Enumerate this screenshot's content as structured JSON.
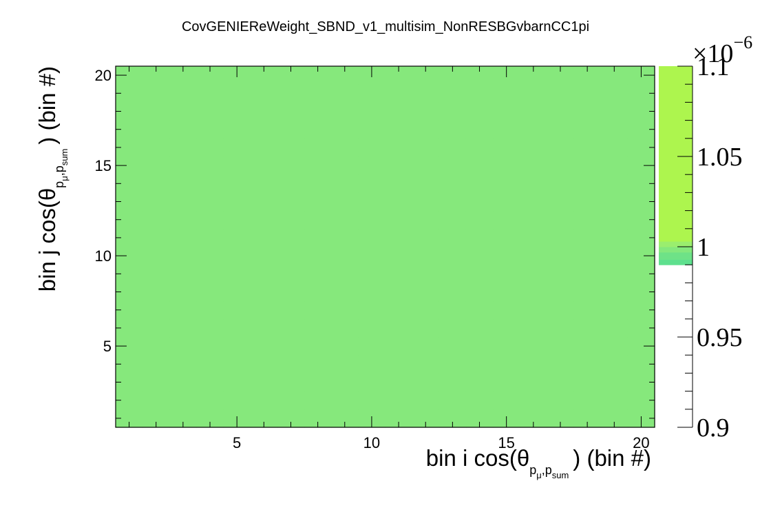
{
  "chart_data": {
    "type": "heatmap",
    "title": "CovGENIEReWeight_SBND_v1_multisim_NonRESBGvbarnCC1pi",
    "xlabel": {
      "prefix": "bin i cos(θ",
      "sub_p1": "p",
      "sub_mu": "μ",
      "sub_p2": "p",
      "sub_sum": "sum",
      "suffix": ") (bin #)"
    },
    "ylabel": {
      "prefix": "bin j cos(θ",
      "sub_p1": "p",
      "sub_mu": "μ",
      "sub_p2": "p",
      "sub_sum": "sum",
      "suffix": ") (bin #)"
    },
    "xlim": [
      0.5,
      20.5
    ],
    "ylim": [
      0.5,
      20.5
    ],
    "x_ticks": [
      5,
      10,
      15,
      20
    ],
    "y_ticks": [
      5,
      10,
      15,
      20
    ],
    "nbins_x": 20,
    "nbins_y": 20,
    "cell_value": 1e-06,
    "fill_color": "#86e87c",
    "z_axis": {
      "range": [
        0.9,
        1.1
      ],
      "ticks": [
        "0.9",
        "0.95",
        "1",
        "1.05",
        "1.1"
      ],
      "exponent_label": "×10",
      "exponent": "−6",
      "palette": [
        {
          "from": 0.99,
          "to": 0.993,
          "color": "#5ee08e"
        },
        {
          "from": 0.993,
          "to": 0.997,
          "color": "#6ee287"
        },
        {
          "from": 0.997,
          "to": 1.0,
          "color": "#84e87d"
        },
        {
          "from": 1.0,
          "to": 1.003,
          "color": "#9aee6e"
        },
        {
          "from": 1.003,
          "to": 1.1,
          "color": "#adf54e"
        }
      ]
    },
    "grid": false,
    "legend": "none"
  }
}
